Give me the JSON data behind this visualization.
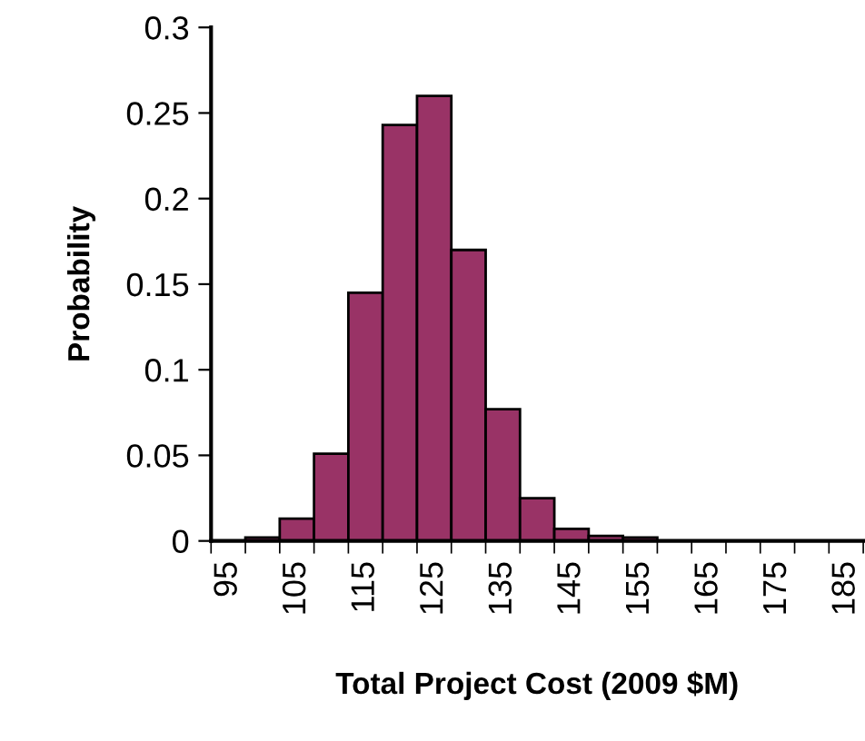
{
  "chart_data": {
    "type": "bar",
    "xlabel": "Total Project Cost (2009 $M)",
    "ylabel": "Probability",
    "categories": [
      "95",
      null,
      "105",
      null,
      "115",
      null,
      "125",
      null,
      "135",
      null,
      "145",
      null,
      "155",
      null,
      "165",
      null,
      "175",
      null,
      "185"
    ],
    "values": [
      0,
      0.002,
      0.013,
      0.051,
      0.145,
      0.243,
      0.26,
      0.17,
      0.077,
      0.025,
      0.007,
      0.003,
      0.002,
      0,
      0,
      0,
      0,
      0,
      0
    ],
    "color": "#993366",
    "ylim": [
      0,
      0.3
    ],
    "yticks": [
      0,
      0.05,
      0.1,
      0.15,
      0.2,
      0.25,
      0.3
    ],
    "grid": false
  }
}
